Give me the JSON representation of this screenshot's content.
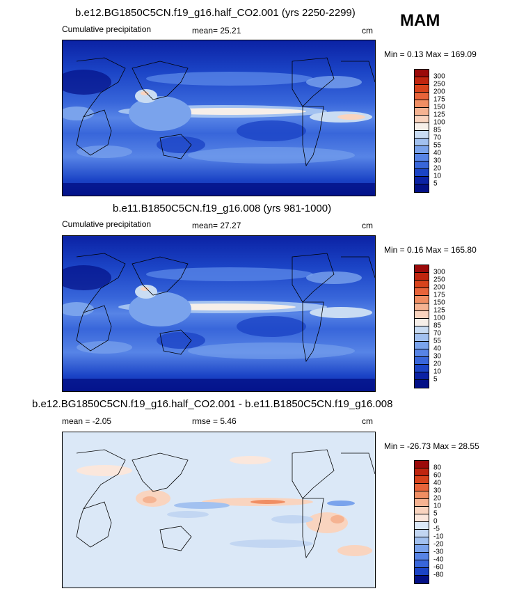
{
  "season": "MAM",
  "panels": [
    {
      "title": "b.e12.BG1850C5CN.f19_g16.half_CO2.001 (yrs 2250-2299)",
      "left_label": "Cumulative precipitation",
      "center_label": "mean=  25.21",
      "units": "cm",
      "minmax": "Min =   0.13 Max = 169.09",
      "colorbar_labels": [
        "300",
        "250",
        "200",
        "175",
        "150",
        "125",
        "100",
        "85",
        "70",
        "55",
        "40",
        "30",
        "20",
        "10",
        "5"
      ],
      "colorbar_colors": [
        "#9b0a0a",
        "#c0250f",
        "#d8431c",
        "#e8643a",
        "#f08e63",
        "#f5b392",
        "#f9d4bf",
        "#f6efe9",
        "#c9dcf3",
        "#a2c1f0",
        "#7aa3ec",
        "#5784e6",
        "#3866da",
        "#1b44c6",
        "#0b22a4",
        "#031086"
      ]
    },
    {
      "title": "b.e11.B1850C5CN.f19_g16.008 (yrs 981-1000)",
      "left_label": "Cumulative precipitation",
      "center_label": "mean=  27.27",
      "units": "cm",
      "minmax": "Min =   0.16 Max = 165.80",
      "colorbar_labels": [
        "300",
        "250",
        "200",
        "175",
        "150",
        "125",
        "100",
        "85",
        "70",
        "55",
        "40",
        "30",
        "20",
        "10",
        "5"
      ],
      "colorbar_colors": [
        "#9b0a0a",
        "#c0250f",
        "#d8431c",
        "#e8643a",
        "#f08e63",
        "#f5b392",
        "#f9d4bf",
        "#f6efe9",
        "#c9dcf3",
        "#a2c1f0",
        "#7aa3ec",
        "#5784e6",
        "#3866da",
        "#1b44c6",
        "#0b22a4",
        "#031086"
      ]
    },
    {
      "title": "b.e12.BG1850C5CN.f19_g16.half_CO2.001 - b.e11.B1850C5CN.f19_g16.008",
      "left_label": "mean =  -2.05",
      "center_label": "rmse =   5.46",
      "units": "cm",
      "minmax": "Min = -26.73 Max =  28.55",
      "colorbar_labels": [
        "80",
        "60",
        "40",
        "30",
        "20",
        "10",
        "5",
        "0",
        "-5",
        "-10",
        "-20",
        "-30",
        "-40",
        "-60",
        "-80"
      ],
      "colorbar_colors": [
        "#9b0a0a",
        "#c0250f",
        "#d8431c",
        "#e8643a",
        "#f08e63",
        "#f5b392",
        "#f9d4bf",
        "#fbe7dc",
        "#dbe8f7",
        "#c2d6f2",
        "#a2c1f0",
        "#7aa3ec",
        "#5784e6",
        "#3866da",
        "#1b44c6",
        "#031086"
      ]
    }
  ]
}
